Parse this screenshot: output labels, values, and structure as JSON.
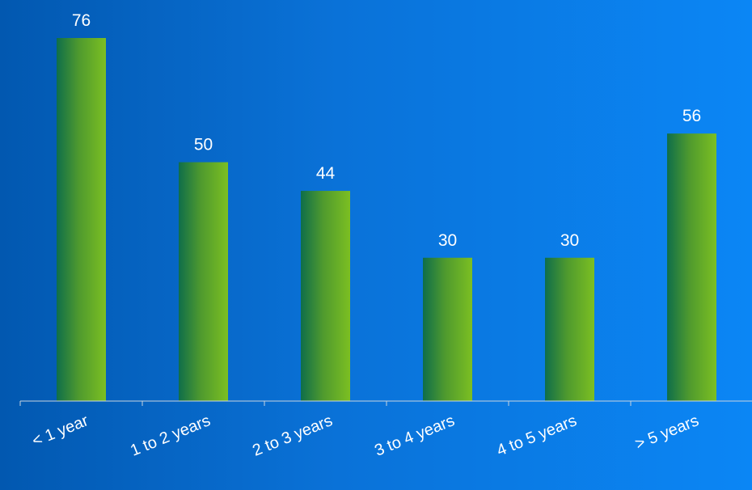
{
  "chart_data": {
    "type": "bar",
    "title": "",
    "xlabel": "",
    "ylabel": "",
    "categories": [
      "< 1 year",
      "1 to 2 years",
      "2 to 3 years",
      "3 to 4 years",
      "4 to 5 years",
      "> 5 years"
    ],
    "values": [
      76,
      50,
      44,
      30,
      30,
      56
    ],
    "ylim": [
      0,
      76
    ],
    "grid": false,
    "legend": "none",
    "data_labels": true,
    "colors": {
      "background_left": "#0258b0",
      "background_right": "#0b86f5",
      "bar_dark": "#0f6e4a",
      "bar_light": "#7cbf22",
      "axis": "#c8d4e0",
      "text": "#ffffff"
    }
  }
}
